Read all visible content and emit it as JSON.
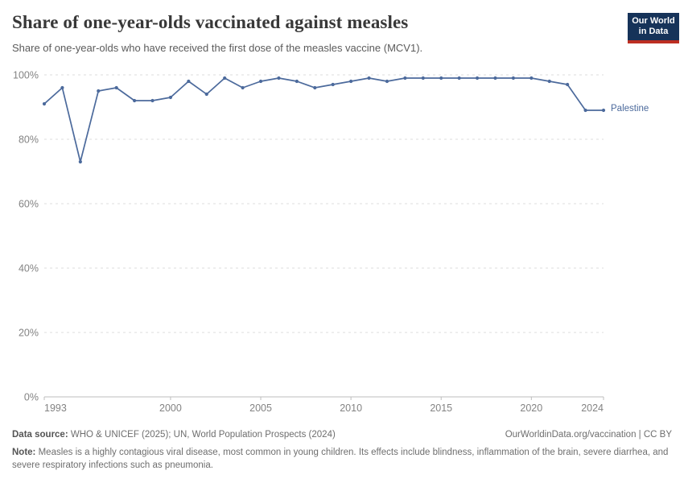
{
  "header": {
    "title": "Share of one-year-olds vaccinated against measles",
    "subtitle": "Share of one-year-olds who have received the first dose of the measles vaccine (MCV1).",
    "logo": {
      "line1": "Our World",
      "line2": "in Data",
      "bg_color": "#163359",
      "accent_color": "#bd2e22"
    }
  },
  "chart_data": {
    "type": "line",
    "title": "Share of one-year-olds vaccinated against measles",
    "xlabel": "",
    "ylabel": "",
    "xlim": [
      1993,
      2024
    ],
    "ylim": [
      0,
      100
    ],
    "grid": "horizontal-dashed",
    "legend_position": "end-of-line",
    "xticks": [
      1993,
      2000,
      2005,
      2010,
      2015,
      2020,
      2024
    ],
    "yticks": [
      0,
      20,
      40,
      60,
      80,
      100
    ],
    "ytick_suffix": "%",
    "x": [
      1993,
      1994,
      1995,
      1996,
      1997,
      1998,
      1999,
      2000,
      2001,
      2002,
      2003,
      2004,
      2005,
      2006,
      2007,
      2008,
      2009,
      2010,
      2011,
      2012,
      2013,
      2014,
      2015,
      2016,
      2017,
      2018,
      2019,
      2020,
      2021,
      2022,
      2023,
      2024
    ],
    "series": [
      {
        "name": "Palestine",
        "color": "#4c6a9c",
        "values": [
          91,
          96,
          73,
          95,
          96,
          92,
          92,
          93,
          98,
          94,
          99,
          96,
          98,
          99,
          98,
          96,
          97,
          98,
          99,
          98,
          99,
          99,
          99,
          99,
          99,
          99,
          99,
          99,
          98,
          97,
          89,
          89
        ]
      }
    ],
    "axis_color": "#bdbdbd",
    "gridline_color": "#dcdcdc",
    "tick_label_color": "#838383"
  },
  "footer": {
    "datasource_label": "Data source:",
    "datasource_text": "WHO & UNICEF (2025); UN, World Population Prospects (2024)",
    "rights_text": "OurWorldinData.org/vaccination | CC BY",
    "note_label": "Note:",
    "note_text": "Measles is a highly contagious viral disease, most common in young children. Its effects include blindness, inflammation of the brain, severe diarrhea, and severe respiratory infections such as pneumonia."
  }
}
